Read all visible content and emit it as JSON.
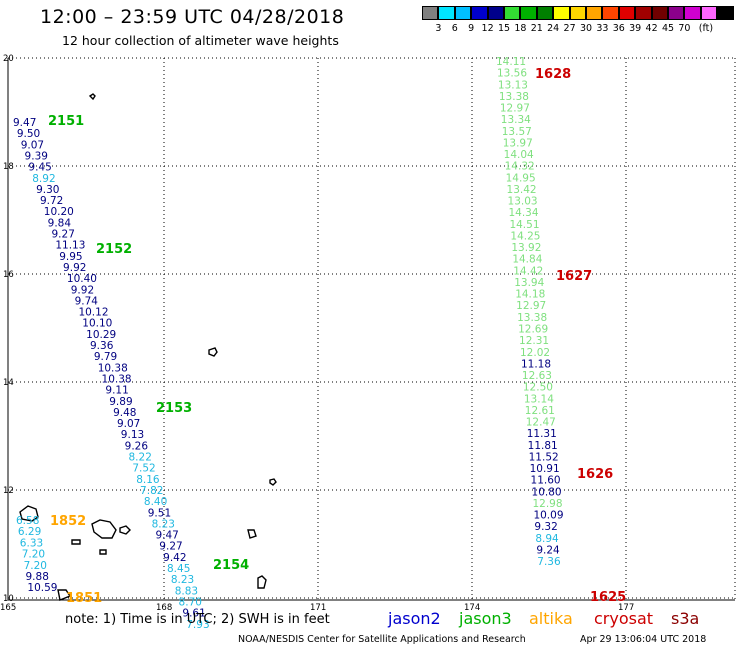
{
  "header": {
    "title": "12:00 – 23:59 UTC 04/28/2018",
    "subtitle": "12 hour collection of altimeter wave heights"
  },
  "color_scale": {
    "colors": [
      "#808080",
      "#00e5ff",
      "#00bfff",
      "#0000cd",
      "#00008b",
      "#33dd33",
      "#00b000",
      "#008000",
      "#ffff00",
      "#ffd700",
      "#ffa500",
      "#ff4500",
      "#e00000",
      "#a00000",
      "#700000",
      "#8b008b",
      "#d000d0",
      "#ff66ff",
      "#000000"
    ],
    "labels": [
      "3",
      "6",
      "9",
      "12",
      "15",
      "18",
      "21",
      "24",
      "27",
      "30",
      "33",
      "36",
      "39",
      "42",
      "45",
      "70"
    ],
    "unit": "(ft)"
  },
  "axes": {
    "lat_labels": [
      "20",
      "18",
      "16",
      "14",
      "12",
      "10"
    ],
    "lon_labels": [
      "165",
      "168",
      "171",
      "174",
      "177"
    ]
  },
  "satellite_colors": {
    "jason2": "#0000cd",
    "jason3": "#00b000",
    "altika": "#ffa500",
    "cryosat": "#cc0000",
    "s3a": "#8b0000",
    "pale_green": "#7fe07f",
    "cyan": "#20b8e0",
    "dark_blue": "#000080"
  },
  "track_west": [
    {
      "v": "9.47",
      "c": "dark_blue"
    },
    {
      "v": "9.50",
      "c": "dark_blue"
    },
    {
      "v": "9.07",
      "c": "dark_blue"
    },
    {
      "v": "9.39",
      "c": "dark_blue"
    },
    {
      "v": "9.45",
      "c": "dark_blue"
    },
    {
      "v": "8.92",
      "c": "cyan"
    },
    {
      "v": "9.30",
      "c": "dark_blue"
    },
    {
      "v": "9.72",
      "c": "dark_blue"
    },
    {
      "v": "10.20",
      "c": "dark_blue"
    },
    {
      "v": "9.84",
      "c": "dark_blue"
    },
    {
      "v": "9.27",
      "c": "dark_blue"
    },
    {
      "v": "11.13",
      "c": "dark_blue"
    },
    {
      "v": "9.95",
      "c": "dark_blue"
    },
    {
      "v": "9.92",
      "c": "dark_blue"
    },
    {
      "v": "10.40",
      "c": "dark_blue"
    },
    {
      "v": "9.92",
      "c": "dark_blue"
    },
    {
      "v": "9.74",
      "c": "dark_blue"
    },
    {
      "v": "10.12",
      "c": "dark_blue"
    },
    {
      "v": "10.10",
      "c": "dark_blue"
    },
    {
      "v": "10.29",
      "c": "dark_blue"
    },
    {
      "v": "9.36",
      "c": "dark_blue"
    },
    {
      "v": "9.79",
      "c": "dark_blue"
    },
    {
      "v": "10.38",
      "c": "dark_blue"
    },
    {
      "v": "10.38",
      "c": "dark_blue"
    },
    {
      "v": "9.11",
      "c": "dark_blue"
    },
    {
      "v": "9.89",
      "c": "dark_blue"
    },
    {
      "v": "9.48",
      "c": "dark_blue"
    },
    {
      "v": "9.07",
      "c": "dark_blue"
    },
    {
      "v": "9.13",
      "c": "dark_blue"
    },
    {
      "v": "9.26",
      "c": "dark_blue"
    },
    {
      "v": "8.22",
      "c": "cyan"
    },
    {
      "v": "7.52",
      "c": "cyan"
    },
    {
      "v": "8.16",
      "c": "cyan"
    },
    {
      "v": "7.82",
      "c": "cyan"
    },
    {
      "v": "8.40",
      "c": "cyan"
    },
    {
      "v": "9.51",
      "c": "dark_blue"
    },
    {
      "v": "8.23",
      "c": "cyan"
    },
    {
      "v": "9.47",
      "c": "dark_blue"
    },
    {
      "v": "9.27",
      "c": "dark_blue"
    },
    {
      "v": "9.42",
      "c": "dark_blue"
    },
    {
      "v": "8.45",
      "c": "cyan"
    },
    {
      "v": "8.23",
      "c": "cyan"
    },
    {
      "v": "8.83",
      "c": "cyan"
    },
    {
      "v": "8.70",
      "c": "cyan"
    },
    {
      "v": "9.61",
      "c": "dark_blue"
    },
    {
      "v": "7.93",
      "c": "cyan"
    }
  ],
  "track_west_lower": [
    {
      "v": "6.58",
      "c": "cyan"
    },
    {
      "v": "6.29",
      "c": "cyan"
    },
    {
      "v": "6.33",
      "c": "cyan"
    },
    {
      "v": "7.20",
      "c": "cyan"
    },
    {
      "v": "7.20",
      "c": "cyan"
    },
    {
      "v": "9.88",
      "c": "dark_blue"
    },
    {
      "v": "10.59",
      "c": "dark_blue"
    }
  ],
  "track_east": [
    {
      "v": "14.11",
      "c": "pale_green"
    },
    {
      "v": "13.56",
      "c": "pale_green"
    },
    {
      "v": "13.13",
      "c": "pale_green"
    },
    {
      "v": "13.38",
      "c": "pale_green"
    },
    {
      "v": "12.97",
      "c": "pale_green"
    },
    {
      "v": "13.34",
      "c": "pale_green"
    },
    {
      "v": "13.57",
      "c": "pale_green"
    },
    {
      "v": "13.97",
      "c": "pale_green"
    },
    {
      "v": "14.04",
      "c": "pale_green"
    },
    {
      "v": "14.32",
      "c": "pale_green"
    },
    {
      "v": "14.95",
      "c": "pale_green"
    },
    {
      "v": "13.42",
      "c": "pale_green"
    },
    {
      "v": "13.03",
      "c": "pale_green"
    },
    {
      "v": "14.34",
      "c": "pale_green"
    },
    {
      "v": "14.51",
      "c": "pale_green"
    },
    {
      "v": "14.25",
      "c": "pale_green"
    },
    {
      "v": "13.92",
      "c": "pale_green"
    },
    {
      "v": "14.84",
      "c": "pale_green"
    },
    {
      "v": "14.42",
      "c": "pale_green"
    },
    {
      "v": "13.94",
      "c": "pale_green"
    },
    {
      "v": "14.18",
      "c": "pale_green"
    },
    {
      "v": "12.97",
      "c": "pale_green"
    },
    {
      "v": "13.38",
      "c": "pale_green"
    },
    {
      "v": "12.69",
      "c": "pale_green"
    },
    {
      "v": "12.31",
      "c": "pale_green"
    },
    {
      "v": "12.02",
      "c": "pale_green"
    },
    {
      "v": "11.18",
      "c": "dark_blue"
    },
    {
      "v": "12.63",
      "c": "pale_green"
    },
    {
      "v": "12.50",
      "c": "pale_green"
    },
    {
      "v": "13.14",
      "c": "pale_green"
    },
    {
      "v": "12.61",
      "c": "pale_green"
    },
    {
      "v": "12.47",
      "c": "pale_green"
    },
    {
      "v": "11.31",
      "c": "dark_blue"
    },
    {
      "v": "11.81",
      "c": "dark_blue"
    },
    {
      "v": "11.52",
      "c": "dark_blue"
    },
    {
      "v": "10.91",
      "c": "dark_blue"
    },
    {
      "v": "11.60",
      "c": "dark_blue"
    },
    {
      "v": "10.80",
      "c": "dark_blue"
    },
    {
      "v": "12.98",
      "c": "pale_green"
    },
    {
      "v": "10.09",
      "c": "dark_blue"
    },
    {
      "v": "9.32",
      "c": "dark_blue"
    },
    {
      "v": "8.94",
      "c": "cyan"
    },
    {
      "v": "9.24",
      "c": "dark_blue"
    },
    {
      "v": "7.36",
      "c": "cyan"
    }
  ],
  "pass_labels": [
    {
      "text": "2151",
      "c": "jason3"
    },
    {
      "text": "2152",
      "c": "jason3"
    },
    {
      "text": "2153",
      "c": "jason3"
    },
    {
      "text": "2154",
      "c": "jason3"
    },
    {
      "text": "1852",
      "c": "altika"
    },
    {
      "text": "1851",
      "c": "altika"
    },
    {
      "text": "1628",
      "c": "cryosat"
    },
    {
      "text": "1627",
      "c": "cryosat"
    },
    {
      "text": "1626",
      "c": "cryosat"
    },
    {
      "text": "1625",
      "c": "cryosat"
    }
  ],
  "footer": {
    "note": "note:  1) Time is in UTC;  2) SWH is in feet",
    "legend": [
      {
        "label": "jason2",
        "c": "jason2"
      },
      {
        "label": "jason3",
        "c": "jason3"
      },
      {
        "label": "altika",
        "c": "altika"
      },
      {
        "label": "cryosat",
        "c": "cryosat"
      },
      {
        "label": "s3a",
        "c": "s3a"
      }
    ],
    "credit": "NOAA/NESDIS Center for Satellite Applications and Research",
    "timestamp": "Apr 29 13:06:04 UTC 2018"
  }
}
